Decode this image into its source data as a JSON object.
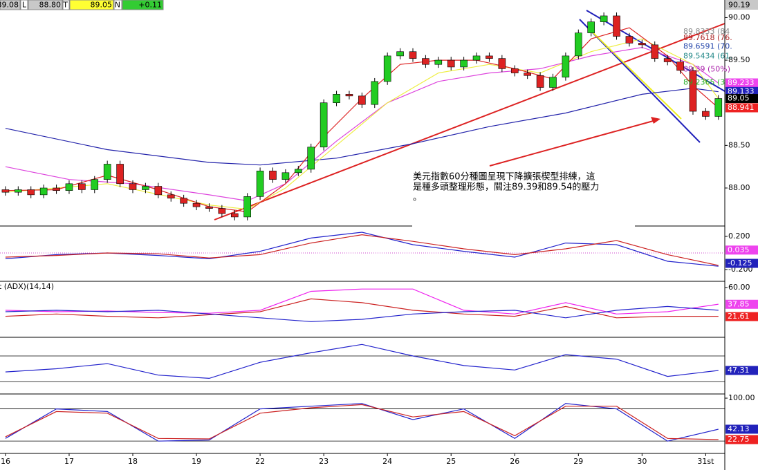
{
  "header": {
    "items": [
      {
        "label": "89.08",
        "bg": "#c8c8c8"
      },
      {
        "label": "L",
        "bg": "#ffffff"
      },
      {
        "label": "88.80",
        "bg": "#c8c8c8"
      },
      {
        "label": "T",
        "bg": "#ffffff"
      },
      {
        "label": "89.05",
        "bg": "#ffff33"
      },
      {
        "label": "N",
        "bg": "#ffffff"
      },
      {
        "label": "+0.11",
        "bg": "#33cc33"
      }
    ]
  },
  "chart_data": [
    {
      "type": "candlestick",
      "xlim": [
        -0.43,
        56.5
      ],
      "ylim": [
        87.57,
        90.19
      ],
      "yticks": [
        {
          "value": 90,
          "label": "90.00"
        },
        {
          "value": 89.5,
          "label": "89.50"
        },
        {
          "value": 88.5,
          "label": "88.50"
        },
        {
          "value": 88,
          "label": "88.00"
        }
      ],
      "xticks": [
        {
          "value": 0,
          "label": "16"
        },
        {
          "value": 5,
          "label": "17"
        },
        {
          "value": 10,
          "label": "18"
        },
        {
          "value": 15,
          "label": "19"
        },
        {
          "value": 20,
          "label": "22"
        },
        {
          "value": 25,
          "label": "23"
        },
        {
          "value": 30,
          "label": "24"
        },
        {
          "value": 35,
          "label": "25"
        },
        {
          "value": 40,
          "label": "26"
        },
        {
          "value": 45,
          "label": "29"
        },
        {
          "value": 50,
          "label": "30"
        },
        {
          "value": 55,
          "label": "31st"
        }
      ],
      "open": [
        87.98,
        87.95,
        87.98,
        87.92,
        88.0,
        87.97,
        88.05,
        87.98,
        88.1,
        88.28,
        88.05,
        87.98,
        88.02,
        87.92,
        87.88,
        87.82,
        87.78,
        87.76,
        87.7,
        87.66,
        87.9,
        88.2,
        88.1,
        88.18,
        88.22,
        88.48,
        89.0,
        89.1,
        89.08,
        88.98,
        89.25,
        89.55,
        89.6,
        89.52,
        89.45,
        89.5,
        89.42,
        89.5,
        89.55,
        89.52,
        89.4,
        89.35,
        89.32,
        89.18,
        89.3,
        89.55,
        89.82,
        89.95,
        90.02,
        89.78,
        89.7,
        89.68,
        89.52,
        89.48,
        89.38,
        88.9,
        88.84
      ],
      "high": [
        88.02,
        88.02,
        88.02,
        88.04,
        88.04,
        88.09,
        88.09,
        88.14,
        88.32,
        88.32,
        88.09,
        88.06,
        88.06,
        87.96,
        87.92,
        87.86,
        87.82,
        87.8,
        87.74,
        87.94,
        88.24,
        88.24,
        88.22,
        88.26,
        88.52,
        89.04,
        89.14,
        89.14,
        89.12,
        89.29,
        89.59,
        89.64,
        89.64,
        89.56,
        89.54,
        89.54,
        89.54,
        89.59,
        89.59,
        89.56,
        89.44,
        89.39,
        89.36,
        89.34,
        89.59,
        89.86,
        89.99,
        90.06,
        90.06,
        89.82,
        89.74,
        89.72,
        89.56,
        89.52,
        89.42,
        88.94,
        89.09
      ],
      "low": [
        87.91,
        87.91,
        87.88,
        87.88,
        87.93,
        87.93,
        87.94,
        87.94,
        88.06,
        88.01,
        87.94,
        87.94,
        87.88,
        87.84,
        87.78,
        87.74,
        87.72,
        87.66,
        87.62,
        87.62,
        87.86,
        88.06,
        88.06,
        88.14,
        88.18,
        88.44,
        88.96,
        89.04,
        88.94,
        88.94,
        89.21,
        89.51,
        89.48,
        89.41,
        89.41,
        89.38,
        89.38,
        89.46,
        89.48,
        89.36,
        89.31,
        89.28,
        89.14,
        89.14,
        89.26,
        89.51,
        89.78,
        89.91,
        89.74,
        89.66,
        89.64,
        89.48,
        89.44,
        89.34,
        88.86,
        88.8,
        88.8
      ],
      "close": [
        87.95,
        87.98,
        87.92,
        88.0,
        87.97,
        88.05,
        87.98,
        88.1,
        88.28,
        88.05,
        87.98,
        88.02,
        87.92,
        87.88,
        87.82,
        87.78,
        87.76,
        87.7,
        87.66,
        87.9,
        88.2,
        88.1,
        88.18,
        88.22,
        88.48,
        89.0,
        89.1,
        89.08,
        88.98,
        89.25,
        89.55,
        89.6,
        89.52,
        89.45,
        89.5,
        89.42,
        89.5,
        89.55,
        89.52,
        89.4,
        89.35,
        89.32,
        89.18,
        89.3,
        89.55,
        89.82,
        89.95,
        90.02,
        89.78,
        89.7,
        89.68,
        89.52,
        89.48,
        89.38,
        88.9,
        88.84,
        89.05
      ],
      "overlays": [
        {
          "color": "#2222aa",
          "x": [
            0,
            8,
            16,
            20,
            26,
            32,
            38,
            44,
            50,
            54,
            56
          ],
          "values": [
            88.7,
            88.45,
            88.3,
            88.27,
            88.35,
            88.52,
            88.72,
            88.88,
            89.1,
            89.17,
            89.13
          ]
        },
        {
          "color": "#dd44dd",
          "x": [
            0,
            5,
            10,
            16,
            19,
            22,
            26,
            30,
            34,
            38,
            42,
            46,
            50,
            54,
            56
          ],
          "values": [
            88.25,
            88.1,
            88.05,
            87.92,
            87.85,
            88.05,
            88.55,
            89.0,
            89.25,
            89.35,
            89.4,
            89.55,
            89.65,
            89.45,
            89.23
          ]
        },
        {
          "color": "#eeee44",
          "x": [
            0,
            8,
            16,
            19,
            22,
            26,
            30,
            34,
            38,
            42,
            46,
            50,
            54,
            56
          ],
          "values": [
            87.95,
            88.05,
            87.8,
            87.75,
            88.0,
            88.5,
            89.0,
            89.35,
            89.45,
            89.35,
            89.6,
            89.75,
            89.45,
            89.05
          ]
        },
        {
          "color": "#dd2222",
          "x": [
            0,
            4,
            8,
            12,
            16,
            19,
            22,
            25,
            28,
            31,
            34,
            37,
            40,
            43,
            46,
            49,
            52,
            54,
            56
          ],
          "values": [
            87.97,
            87.98,
            88.15,
            87.98,
            87.78,
            87.72,
            88.05,
            88.6,
            89.05,
            89.45,
            89.5,
            89.5,
            89.4,
            89.28,
            89.75,
            89.88,
            89.55,
            89.2,
            88.94
          ]
        }
      ],
      "markers": [
        {
          "value": 89.233,
          "label": "89.233",
          "color": "#ee44ee",
          "text_color": "#ffffff"
        },
        {
          "value": 89.133,
          "label": "89.133",
          "color": "#2222bb",
          "text_color": "#ffffff"
        },
        {
          "value": 89.05,
          "label": "89.05",
          "color": "#000000",
          "text_color": "#ffffff"
        },
        {
          "value": 88.941,
          "label": "88.941",
          "color": "#ee2222",
          "text_color": "#ffffff"
        }
      ],
      "fib_labels": [
        {
          "value": 89.8333,
          "label": "89.8333 (84",
          "color": "#888888"
        },
        {
          "value": 89.7618,
          "label": "89.7618 (76.",
          "color": "#aa2222"
        },
        {
          "value": 89.6591,
          "label": "89.6591 (70.",
          "color": "#2244aa"
        },
        {
          "value": 89.5434,
          "label": "89.5434 (61.",
          "color": "#228888"
        },
        {
          "value": 89.39,
          "label": "89.39 (50%)",
          "color": "#aa22aa"
        },
        {
          "value": 89.2365,
          "label": "89.2365 (38.",
          "color": "#22aa22"
        }
      ],
      "annotation": [
        "美元指數60分種圖呈現下降擴張楔型排練，這",
        "是種多頭整理形態，關注89.39和89.54的壓力",
        "。"
      ]
    },
    {
      "type": "line",
      "ylim": [
        -0.325,
        0.3
      ],
      "yticks": [
        {
          "value": 0.2,
          "label": "0.200"
        },
        {
          "value": -0.2,
          "label": "-0.200"
        }
      ],
      "x": [
        0,
        4,
        8,
        12,
        16,
        20,
        24,
        28,
        32,
        36,
        40,
        44,
        48,
        52,
        56
      ],
      "series": [
        {
          "color": "#2222cc",
          "values": [
            -0.07,
            -0.02,
            0.0,
            -0.03,
            -0.07,
            0.02,
            0.18,
            0.25,
            0.1,
            0.02,
            -0.05,
            0.12,
            0.1,
            -0.1,
            -0.16
          ]
        },
        {
          "color": "#cc2222",
          "values": [
            -0.05,
            -0.03,
            0.0,
            -0.01,
            -0.06,
            -0.02,
            0.12,
            0.22,
            0.14,
            0.05,
            -0.02,
            0.05,
            0.15,
            -0.02,
            -0.15
          ]
        }
      ],
      "markers": [
        {
          "value": 0.035,
          "label": "0.035",
          "color": "#ee44ee",
          "text_color": "#ffffff"
        },
        {
          "value": -0.125,
          "label": "-0.125",
          "color": "#2222bb",
          "text_color": "#ffffff"
        }
      ]
    },
    {
      "type": "line",
      "title": "t (ADX)(14,14)",
      "ylim": [
        -3,
        67.3
      ],
      "yticks": [
        {
          "value": 60,
          "label": "60.00"
        }
      ],
      "x": [
        0,
        4,
        8,
        12,
        16,
        20,
        24,
        28,
        32,
        36,
        40,
        44,
        48,
        52,
        56
      ],
      "series": [
        {
          "color": "#ee22ee",
          "values": [
            30,
            28,
            29,
            27,
            26,
            30,
            55,
            58,
            58,
            30,
            25,
            40,
            25,
            28,
            38
          ]
        },
        {
          "color": "#cc2222",
          "values": [
            22,
            25,
            22,
            20,
            24,
            28,
            45,
            40,
            30,
            25,
            22,
            35,
            20,
            22,
            22
          ]
        },
        {
          "color": "#2222cc",
          "values": [
            28,
            30,
            28,
            30,
            25,
            20,
            15,
            18,
            25,
            28,
            30,
            20,
            30,
            35,
            30
          ]
        }
      ],
      "markers": [
        {
          "value": 37.85,
          "label": "37.85",
          "color": "#ee44ee",
          "text_color": "#ffffff"
        },
        {
          "value": 21.61,
          "label": "21.61",
          "color": "#ee2222",
          "text_color": "#ffffff"
        }
      ]
    },
    {
      "type": "line",
      "ylim": [
        12.7,
        97
      ],
      "levels": [
        70,
        30
      ],
      "x": [
        0,
        4,
        8,
        12,
        16,
        20,
        24,
        28,
        32,
        36,
        40,
        44,
        48,
        52,
        56
      ],
      "series": [
        {
          "color": "#2222cc",
          "values": [
            45,
            50,
            58,
            40,
            35,
            60,
            75,
            88,
            70,
            55,
            48,
            72,
            65,
            38,
            47.31
          ]
        }
      ],
      "markers": [
        {
          "value": 47.31,
          "label": "47.31",
          "color": "#2222bb",
          "text_color": "#ffffff"
        }
      ]
    },
    {
      "type": "line",
      "ylim": [
        -1.7,
        105.2
      ],
      "levels": [
        80,
        20
      ],
      "yticks": [
        {
          "value": 100,
          "label": "100.00"
        }
      ],
      "x": [
        0,
        4,
        8,
        12,
        16,
        20,
        24,
        28,
        32,
        36,
        40,
        44,
        48,
        52,
        56
      ],
      "series": [
        {
          "color": "#2222cc",
          "values": [
            25,
            80,
            75,
            20,
            22,
            80,
            85,
            90,
            60,
            80,
            25,
            90,
            80,
            20,
            42.13
          ]
        },
        {
          "color": "#cc2222",
          "values": [
            28,
            75,
            72,
            25,
            24,
            72,
            82,
            88,
            65,
            75,
            30,
            85,
            85,
            25,
            22.75
          ]
        }
      ],
      "markers": [
        {
          "value": 42.13,
          "label": "42.13",
          "color": "#2222bb",
          "text_color": "#ffffff"
        },
        {
          "value": 22.75,
          "label": "22.75",
          "color": "#ee2222",
          "text_color": "#ffffff"
        }
      ]
    }
  ]
}
